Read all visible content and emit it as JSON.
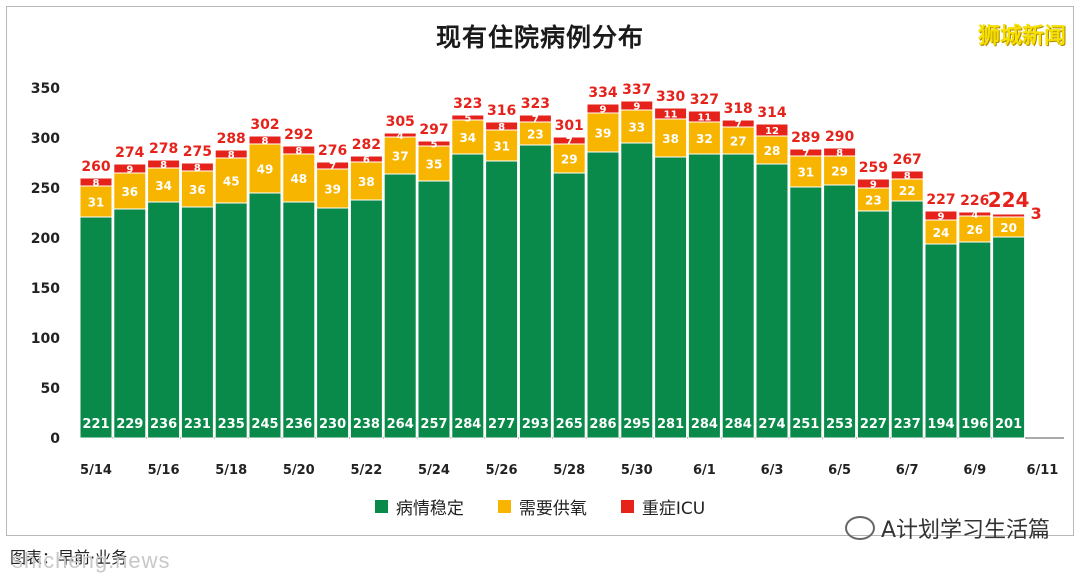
{
  "header": {
    "title": "现有住院病例分布",
    "brand": "狮城新闻"
  },
  "legend": {
    "items": [
      {
        "label": "病情稳定",
        "color": "#0a8a4a"
      },
      {
        "label": "需要供氧",
        "color": "#f7b500"
      },
      {
        "label": "重症ICU",
        "color": "#e5231b"
      }
    ]
  },
  "footer": {
    "source": "图表：早前·业务",
    "watermark": "shicheng.news",
    "account": "A计划学习生活篇"
  },
  "chart_data": {
    "type": "bar",
    "stacked": true,
    "title": "现有住院病例分布",
    "ylim": [
      0,
      350
    ],
    "yticks": [
      0,
      50,
      100,
      150,
      200,
      250,
      300,
      350
    ],
    "xtick_labels": [
      "5/14",
      "5/16",
      "5/18",
      "5/20",
      "5/22",
      "5/24",
      "5/26",
      "5/28",
      "5/30",
      "6/1",
      "6/3",
      "6/5",
      "6/7",
      "6/9",
      "6/11"
    ],
    "categories": [
      "5/14",
      "5/15",
      "5/16",
      "5/17",
      "5/18",
      "5/19",
      "5/20",
      "5/21",
      "5/22",
      "5/23",
      "5/24",
      "5/25",
      "5/26",
      "5/27",
      "5/28",
      "5/29",
      "5/30",
      "5/31",
      "6/1",
      "6/2",
      "6/3",
      "6/4",
      "6/5",
      "6/6",
      "6/7",
      "6/8",
      "6/9",
      "6/10"
    ],
    "series": [
      {
        "name": "病情稳定",
        "color": "#0a8a4a",
        "values": [
          221,
          229,
          236,
          231,
          235,
          245,
          236,
          230,
          238,
          264,
          257,
          284,
          277,
          293,
          265,
          286,
          295,
          281,
          284,
          284,
          274,
          251,
          253,
          227,
          237,
          194,
          196,
          201
        ]
      },
      {
        "name": "需要供氧",
        "color": "#f7b500",
        "values": [
          31,
          36,
          34,
          36,
          45,
          49,
          48,
          39,
          38,
          37,
          35,
          34,
          31,
          23,
          29,
          39,
          33,
          38,
          32,
          27,
          28,
          31,
          29,
          23,
          22,
          24,
          26,
          20
        ]
      },
      {
        "name": "重症ICU",
        "color": "#e5231b",
        "values": [
          8,
          9,
          8,
          8,
          8,
          8,
          8,
          7,
          6,
          4,
          5,
          5,
          8,
          7,
          7,
          9,
          9,
          11,
          11,
          7,
          12,
          7,
          8,
          9,
          8,
          9,
          4,
          3
        ]
      }
    ],
    "totals": [
      260,
      274,
      278,
      275,
      288,
      302,
      292,
      276,
      282,
      305,
      297,
      323,
      316,
      323,
      301,
      334,
      337,
      330,
      327,
      318,
      314,
      289,
      290,
      259,
      267,
      227,
      226,
      224
    ],
    "grid": false,
    "legend_position": "bottom"
  }
}
